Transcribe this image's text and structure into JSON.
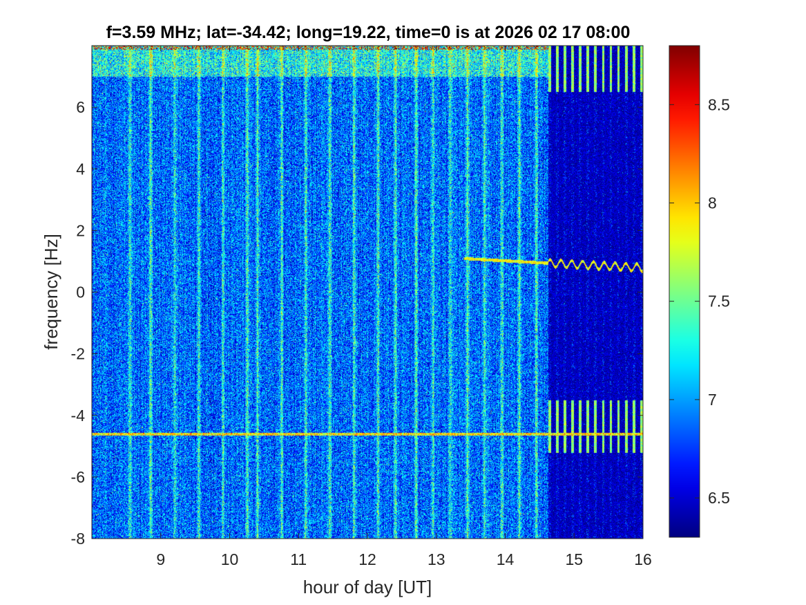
{
  "chart_data": {
    "type": "heatmap",
    "title": "f=3.59 MHz;  lat=-34.42; long=19.22, time=0 is at 2026 02 17 08:00",
    "xlabel": "hour of day [UT]",
    "ylabel": "frequency [Hz]",
    "xlim": [
      8.0,
      16.0
    ],
    "ylim": [
      -8,
      8
    ],
    "xticks": [
      9,
      10,
      11,
      12,
      13,
      14,
      15,
      16
    ],
    "xtick_labels": [
      "9",
      "10",
      "11",
      "12",
      "13",
      "14",
      "15",
      "16"
    ],
    "yticks": [
      6,
      4,
      2,
      0,
      -2,
      -4,
      -6,
      -8
    ],
    "ytick_labels": [
      "6",
      "4",
      "2",
      "0",
      "-2",
      "-4",
      "-6",
      "-8"
    ],
    "colormap": "jet",
    "color_range": [
      6.3,
      8.8
    ],
    "colorbar_ticks": [
      8.5,
      8,
      7.5,
      7,
      6.5
    ],
    "colorbar_tick_labels": [
      "8.5",
      "8",
      "7.5",
      "7",
      "6.5"
    ],
    "features": {
      "background_level_before": 6.85,
      "background_level_after": 6.45,
      "regime_change_hour": 14.62,
      "vertical_stripe_hours": [
        8.55,
        8.85,
        9.2,
        9.55,
        9.9,
        10.25,
        10.4,
        10.75,
        11.1,
        11.45,
        11.8,
        12.15,
        12.4,
        12.7,
        12.95,
        13.2,
        13.45,
        13.7,
        13.95,
        14.2,
        14.45
      ],
      "stripe_level": 7.45,
      "horizontal_line_frequency_hz": -4.6,
      "horizontal_line_level": 7.95,
      "high_band_frequency_hz": [
        7.0,
        8.0
      ],
      "high_band_level": 7.35,
      "carrier_line": {
        "x": [
          13.4,
          14.62,
          16.0
        ],
        "y": [
          1.1,
          0.95,
          0.8
        ],
        "level": 7.9
      },
      "late_comb_band_hz": [
        [
          -5.2,
          -3.5
        ],
        [
          6.5,
          8.0
        ]
      ],
      "late_comb_level": 7.6
    }
  }
}
